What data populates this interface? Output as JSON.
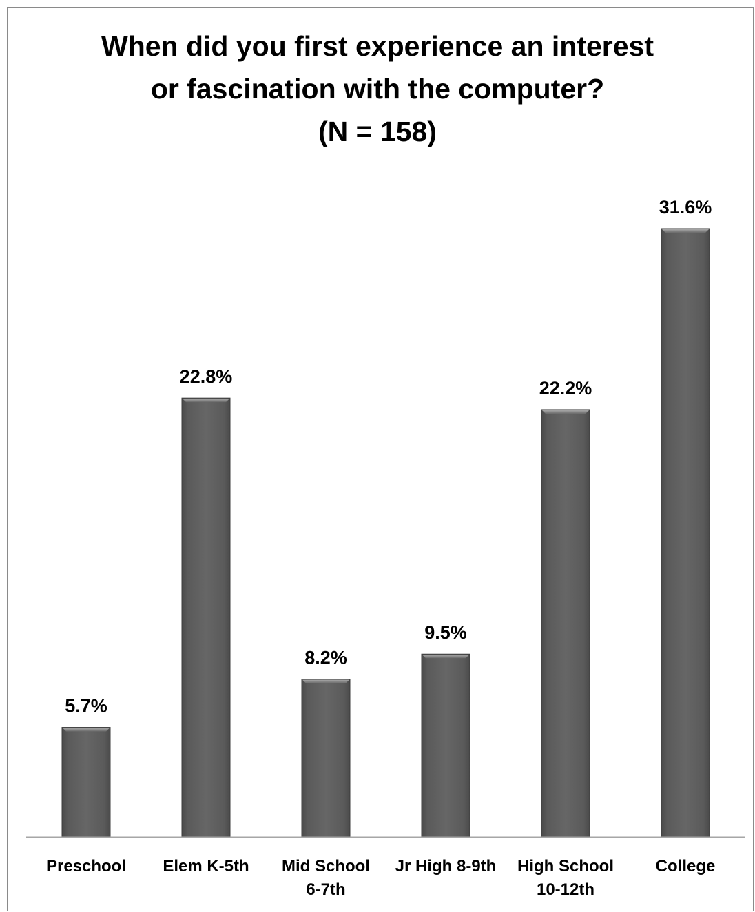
{
  "chart_data": {
    "type": "bar",
    "title_lines": [
      "When did you first experience an interest",
      "or fascination with the computer?",
      "(N = 158)"
    ],
    "categories": [
      [
        "Preschool"
      ],
      [
        "Elem K-5th"
      ],
      [
        "Mid School",
        "6-7th"
      ],
      [
        "Jr High 8-9th"
      ],
      [
        "High School",
        "10-12th"
      ],
      [
        "College"
      ]
    ],
    "values": [
      5.7,
      22.8,
      8.2,
      9.5,
      22.2,
      31.6
    ],
    "value_labels": [
      "5.7%",
      "22.8%",
      "8.2%",
      "9.5%",
      "22.2%",
      "31.6%"
    ],
    "ylim": [
      0,
      35
    ],
    "grid": false,
    "legend": "none",
    "bar_color": "#5e5e5e",
    "axis_color": "#a6a6a6"
  }
}
